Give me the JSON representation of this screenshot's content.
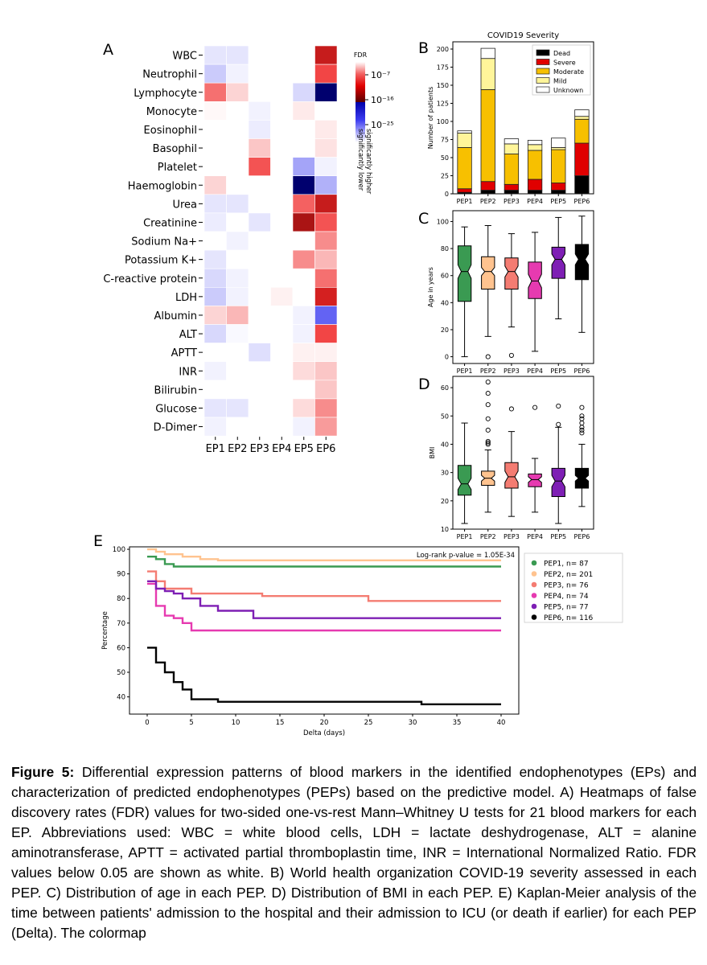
{
  "panels": {
    "A": "A",
    "B": "B",
    "C": "C",
    "D": "D",
    "E": "E"
  },
  "chart_data": [
    {
      "type": "heatmap",
      "panel": "A",
      "title": "",
      "rows": [
        "WBC",
        "Neutrophil",
        "Lymphocyte",
        "Monocyte",
        "Eosinophil",
        "Basophil",
        "Platelet",
        "Haemoglobin",
        "Urea",
        "Creatinine",
        "Sodium Na+",
        "Potassium K+",
        "C-reactive protein",
        "LDH",
        "Albumin",
        "ALT",
        "APTT",
        "INR",
        "Bilirubin",
        "Glucose",
        "D-Dimer"
      ],
      "columns": [
        "EP1",
        "EP2",
        "EP3",
        "EP4",
        "EP5",
        "EP6"
      ],
      "value_unit": "signed -log10(FDR); positive = significantly higher (red), negative = significantly lower (blue), 0 = white",
      "values": [
        [
          -2,
          -2,
          0,
          0,
          0,
          18
        ],
        [
          -4,
          -1,
          0,
          0,
          0,
          13
        ],
        [
          10,
          3,
          0,
          0,
          -3,
          -25
        ],
        [
          0.5,
          0,
          -1,
          0,
          1.5,
          0
        ],
        [
          0,
          0,
          -1.5,
          0,
          0,
          1.5
        ],
        [
          0,
          0,
          4,
          0,
          0,
          2
        ],
        [
          0,
          0,
          12,
          0,
          -7,
          -1
        ],
        [
          3,
          0,
          0,
          0,
          -25,
          -6
        ],
        [
          -2,
          -2,
          0,
          0,
          11,
          18
        ],
        [
          -1.5,
          0,
          -2,
          0,
          20,
          12
        ],
        [
          0,
          -1,
          0,
          0,
          0,
          8
        ],
        [
          -2,
          0,
          0,
          0,
          8,
          5
        ],
        [
          -3,
          -1,
          0,
          0,
          0,
          10
        ],
        [
          -4,
          -1,
          0,
          1,
          0,
          17
        ],
        [
          3,
          5,
          0,
          0,
          -1,
          -12
        ],
        [
          -3,
          -0.5,
          0,
          0,
          -1,
          13
        ],
        [
          0,
          0,
          -2.5,
          0,
          1,
          1
        ],
        [
          -1,
          0,
          0,
          0,
          2.5,
          4
        ],
        [
          0,
          0,
          0,
          0,
          0,
          4
        ],
        [
          -2,
          -2,
          0,
          0,
          2.5,
          8
        ],
        [
          -1,
          0,
          0,
          0,
          -1,
          7
        ]
      ],
      "colorbar": {
        "title": "FDR",
        "ticks": [
          "10⁻⁷",
          "10⁻¹⁶",
          "10⁻²⁵"
        ],
        "label_high": "significantly higher",
        "label_low": "significantly lower"
      }
    },
    {
      "type": "bar",
      "stacked": true,
      "panel": "B",
      "title": "COVID19 Severity",
      "ylabel": "Number of patients",
      "categories": [
        "PEP1",
        "PEP2",
        "PEP3",
        "PEP4",
        "PEP5",
        "PEP6"
      ],
      "yticks": [
        0,
        25,
        50,
        75,
        100,
        125,
        150,
        175,
        200
      ],
      "ylim": [
        0,
        210
      ],
      "series": [
        {
          "name": "Dead",
          "color": "#000000",
          "values": [
            2,
            5,
            5,
            5,
            5,
            25
          ]
        },
        {
          "name": "Severe",
          "color": "#e00000",
          "values": [
            5,
            12,
            8,
            15,
            10,
            45
          ]
        },
        {
          "name": "Moderate",
          "color": "#f7c000",
          "values": [
            57,
            127,
            42,
            40,
            46,
            33
          ]
        },
        {
          "name": "Mild",
          "color": "#fff59a",
          "values": [
            20,
            43,
            14,
            8,
            3,
            4
          ]
        },
        {
          "name": "Unknown",
          "color": "#ffffff",
          "values": [
            3,
            14,
            7,
            6,
            13,
            9
          ]
        }
      ]
    },
    {
      "type": "box",
      "panel": "C",
      "ylabel": "Age in years",
      "categories": [
        "PEP1",
        "PEP2",
        "PEP3",
        "PEP4",
        "PEP5",
        "PEP6"
      ],
      "yticks": [
        0,
        20,
        40,
        60,
        80,
        100
      ],
      "ylim": [
        -5,
        108
      ],
      "boxes": [
        {
          "q1": 41,
          "median": 63,
          "q3": 82,
          "whislo": 0,
          "whishi": 96,
          "notch": [
            58,
            68
          ],
          "fliers": [],
          "color": "#3a9a52"
        },
        {
          "q1": 50,
          "median": 63,
          "q3": 74,
          "whislo": 15,
          "whishi": 97,
          "notch": [
            60,
            66
          ],
          "fliers": [
            0
          ],
          "color": "#ffc38f"
        },
        {
          "q1": 50,
          "median": 63,
          "q3": 73,
          "whislo": 22,
          "whishi": 91,
          "notch": [
            59,
            67
          ],
          "fliers": [
            1
          ],
          "color": "#f47c72"
        },
        {
          "q1": 43,
          "median": 56,
          "q3": 70,
          "whislo": 4,
          "whishi": 92,
          "notch": [
            51,
            61
          ],
          "fliers": [],
          "color": "#e63ab0"
        },
        {
          "q1": 58,
          "median": 72,
          "q3": 81,
          "whislo": 28,
          "whishi": 103,
          "notch": [
            68,
            76
          ],
          "fliers": [],
          "color": "#7e1fb4"
        },
        {
          "q1": 57,
          "median": 72,
          "q3": 83,
          "whislo": 18,
          "whishi": 104,
          "notch": [
            68,
            76
          ],
          "fliers": [],
          "color": "#000000"
        }
      ]
    },
    {
      "type": "box",
      "panel": "D",
      "ylabel": "BMI",
      "categories": [
        "PEP1",
        "PEP2",
        "PEP3",
        "PEP4",
        "PEP5",
        "PEP6"
      ],
      "yticks": [
        10,
        20,
        30,
        40,
        50,
        60
      ],
      "ylim": [
        10,
        64
      ],
      "boxes": [
        {
          "q1": 22,
          "median": 26,
          "q3": 32.5,
          "whislo": 12,
          "whishi": 47.5,
          "notch": [
            24,
            28
          ],
          "fliers": [],
          "color": "#3a9a52"
        },
        {
          "q1": 25.5,
          "median": 28,
          "q3": 30.5,
          "whislo": 16,
          "whishi": 38,
          "notch": [
            27,
            29
          ],
          "fliers": [
            40,
            40.5,
            41,
            45,
            49,
            54,
            58,
            62
          ],
          "color": "#ffc38f"
        },
        {
          "q1": 24.5,
          "median": 28.5,
          "q3": 33.5,
          "whislo": 14.5,
          "whishi": 44.5,
          "notch": [
            26.5,
            30.5
          ],
          "fliers": [
            52.5
          ],
          "color": "#f47c72"
        },
        {
          "q1": 25,
          "median": 27.5,
          "q3": 29.5,
          "whislo": 16,
          "whishi": 35,
          "notch": [
            26.5,
            28.5
          ],
          "fliers": [
            53
          ],
          "color": "#e63ab0"
        },
        {
          "q1": 21.5,
          "median": 27,
          "q3": 31.5,
          "whislo": 12,
          "whishi": 46,
          "notch": [
            25,
            29
          ],
          "fliers": [
            47,
            53.5
          ],
          "color": "#7e1fb4"
        },
        {
          "q1": 24.5,
          "median": 28,
          "q3": 31.5,
          "whislo": 18,
          "whishi": 40,
          "notch": [
            27,
            29
          ],
          "fliers": [
            44,
            45,
            46,
            47.5,
            49,
            50,
            53
          ],
          "color": "#000000"
        }
      ]
    },
    {
      "type": "line",
      "step": true,
      "panel": "E",
      "xlabel": "Delta (days)",
      "ylabel": "Percentage",
      "xticks": [
        0,
        5,
        10,
        15,
        20,
        25,
        30,
        35,
        40
      ],
      "yticks": [
        40,
        50,
        60,
        70,
        80,
        90,
        100
      ],
      "xlim": [
        -2,
        42
      ],
      "ylim": [
        33,
        101
      ],
      "annotation": "Log-rank p-value = 1.05E-34",
      "series": [
        {
          "name": "PEP1, n=  87",
          "color": "#3a9a52",
          "x": [
            0,
            1,
            2,
            3,
            40
          ],
          "y": [
            97,
            96,
            94,
            93,
            93
          ]
        },
        {
          "name": "PEP2, n= 201",
          "color": "#ffc38f",
          "x": [
            0,
            1,
            2,
            4,
            6,
            8,
            40
          ],
          "y": [
            100,
            99,
            98,
            97,
            96,
            95.5,
            95.5
          ]
        },
        {
          "name": "PEP3, n=  76",
          "color": "#f47c72",
          "x": [
            0,
            1,
            2,
            5,
            13,
            25,
            40
          ],
          "y": [
            91,
            87,
            84,
            82,
            81,
            79,
            79
          ]
        },
        {
          "name": "PEP4, n=  74",
          "color": "#e63ab0",
          "x": [
            0,
            1,
            2,
            3,
            4,
            5,
            40
          ],
          "y": [
            86,
            77,
            73,
            72,
            70,
            67,
            67
          ]
        },
        {
          "name": "PEP5, n=  77",
          "color": "#7e1fb4",
          "x": [
            0,
            1,
            2,
            3,
            4,
            6,
            8,
            12,
            40
          ],
          "y": [
            87,
            84,
            83,
            82,
            80,
            77,
            75,
            72,
            72
          ]
        },
        {
          "name": "PEP6, n= 116",
          "color": "#000000",
          "x": [
            0,
            1,
            2,
            3,
            4,
            5,
            8,
            31,
            40
          ],
          "y": [
            60,
            54,
            50,
            46,
            43,
            39,
            38,
            37,
            37
          ]
        }
      ]
    }
  ],
  "caption": {
    "label": "Figure 5:",
    "text": "Differential expression patterns of blood markers in the identified endophenotypes (EPs) and characterization of predicted endophenotypes (PEPs) based on the predictive model. A) Heatmaps of false discovery rates (FDR) values for two-sided one-vs-rest Mann–Whitney U tests for 21 blood markers for each EP. Abbreviations used: WBC = white blood cells, LDH = lactate deshydrogenase, ALT = alanine aminotransferase, APTT = activated partial thromboplastin time, INR = International Normalized Ratio.  FDR values below 0.05 are shown as white. B) World health organization COVID-19 severity assessed in each PEP. C) Distribution of age in each PEP. D) Distribution of BMI in each PEP. E) Kaplan-Meier analysis of the time between patients' admission to the hospital and their admission to ICU (or death if earlier) for each PEP (Delta). The colormap"
  }
}
